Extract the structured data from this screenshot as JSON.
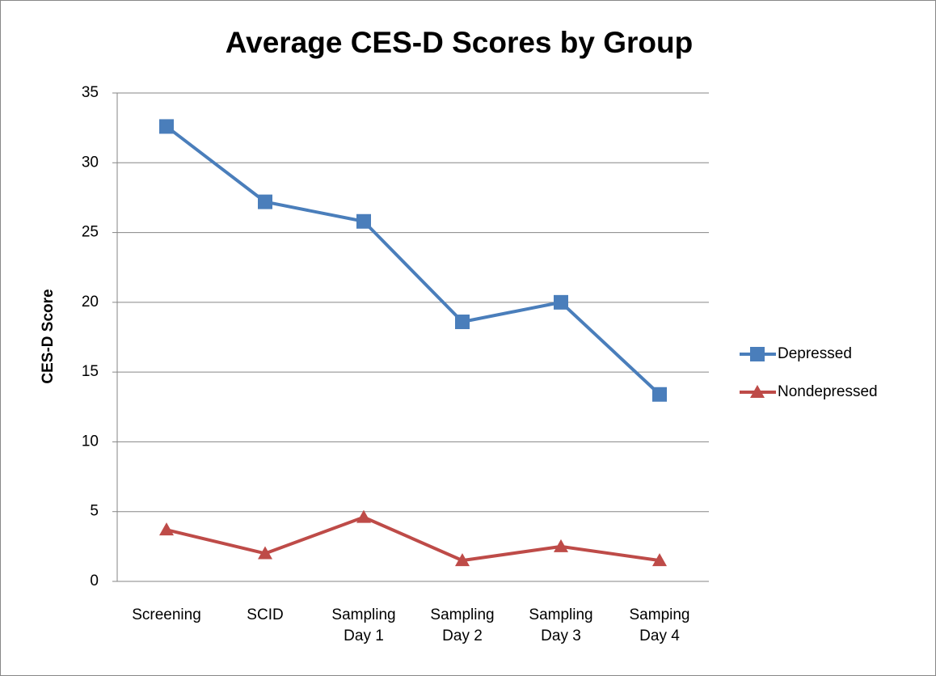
{
  "chart_data": {
    "type": "line",
    "title": "Average CES-D Scores by Group",
    "y_label": "CES-D Score",
    "categories": [
      "Screening",
      "SCID",
      "Sampling Day 1",
      "Sampling Day 2",
      "Sampling Day 3",
      "Samping Day 4"
    ],
    "series": [
      {
        "name": "Depressed",
        "color": "#4a7ebb",
        "marker": "square",
        "values": [
          32.6,
          27.2,
          25.8,
          18.6,
          20.0,
          13.4
        ]
      },
      {
        "name": "Nondepressed",
        "color": "#be4b48",
        "marker": "triangle",
        "values": [
          3.7,
          2.0,
          4.6,
          1.5,
          2.5,
          1.5
        ]
      }
    ],
    "ylim": [
      0,
      35
    ],
    "yticks": [
      0,
      5,
      10,
      15,
      20,
      25,
      30,
      35
    ],
    "grid": true,
    "legend": "right"
  }
}
